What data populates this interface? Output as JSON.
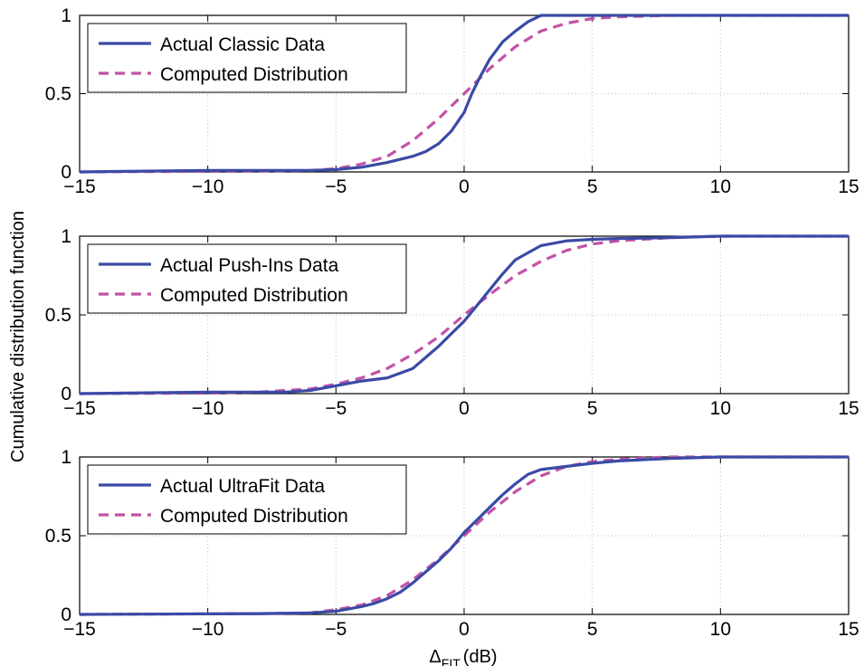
{
  "figure": {
    "ylabel": "Cumulative distribution function",
    "xlabel_symbol": "Δ",
    "xlabel_sub": "FIT",
    "xlabel_unit": "(dB)"
  },
  "colors": {
    "actual": "#3a4aa6",
    "computed": "#c252a6",
    "grid": "#bfbfbf"
  },
  "chart_data": [
    {
      "type": "line",
      "xlim": [
        -15,
        15
      ],
      "ylim": [
        0,
        1
      ],
      "xticks": [
        -15,
        -10,
        -5,
        0,
        5,
        10,
        15
      ],
      "yticks": [
        0,
        0.5,
        1
      ],
      "grid": true,
      "legend": "top-left",
      "series": [
        {
          "name": "Actual Classic Data",
          "style": "solid",
          "x": [
            -15,
            -10,
            -6,
            -5,
            -4,
            -3,
            -2,
            -1.5,
            -1,
            -0.5,
            0,
            0.3,
            0.6,
            1,
            1.5,
            2,
            2.5,
            3,
            4,
            5,
            15
          ],
          "y": [
            0,
            0.01,
            0.01,
            0.015,
            0.03,
            0.06,
            0.1,
            0.13,
            0.18,
            0.26,
            0.38,
            0.5,
            0.6,
            0.72,
            0.83,
            0.9,
            0.96,
            1.0,
            1.0,
            1.0,
            1.0
          ]
        },
        {
          "name": "Computed Distribution",
          "style": "dashed",
          "x": [
            -15,
            -8,
            -6,
            -5,
            -4,
            -3,
            -2,
            -1,
            0,
            1,
            2,
            3,
            4,
            5,
            6,
            8,
            15
          ],
          "y": [
            0,
            0.005,
            0.01,
            0.02,
            0.05,
            0.1,
            0.2,
            0.34,
            0.5,
            0.66,
            0.8,
            0.9,
            0.95,
            0.98,
            0.99,
            1.0,
            1.0
          ]
        }
      ]
    },
    {
      "type": "line",
      "xlim": [
        -15,
        15
      ],
      "ylim": [
        0,
        1
      ],
      "xticks": [
        -15,
        -10,
        -5,
        0,
        5,
        10,
        15
      ],
      "yticks": [
        0,
        0.5,
        1
      ],
      "grid": true,
      "legend": "top-left",
      "series": [
        {
          "name": "Actual Push-Ins Data",
          "style": "solid",
          "x": [
            -15,
            -10,
            -7,
            -6,
            -5,
            -4,
            -3,
            -2,
            -1.5,
            -1,
            -0.5,
            0,
            0.5,
            1,
            1.5,
            2,
            3,
            4,
            5,
            6,
            8,
            10,
            15
          ],
          "y": [
            0,
            0.01,
            0.01,
            0.02,
            0.05,
            0.08,
            0.1,
            0.16,
            0.23,
            0.3,
            0.38,
            0.46,
            0.56,
            0.66,
            0.76,
            0.85,
            0.94,
            0.97,
            0.98,
            0.985,
            0.99,
            1.0,
            1.0
          ]
        },
        {
          "name": "Computed Distribution",
          "style": "dashed",
          "x": [
            -15,
            -10,
            -8,
            -6,
            -5,
            -4,
            -3,
            -2,
            -1,
            0,
            1,
            2,
            3,
            4,
            5,
            6,
            8,
            10,
            15
          ],
          "y": [
            0,
            0.003,
            0.01,
            0.03,
            0.06,
            0.1,
            0.16,
            0.25,
            0.36,
            0.5,
            0.63,
            0.75,
            0.84,
            0.91,
            0.95,
            0.97,
            0.99,
            1.0,
            1.0
          ]
        }
      ]
    },
    {
      "type": "line",
      "xlim": [
        -15,
        15
      ],
      "ylim": [
        0,
        1
      ],
      "xticks": [
        -15,
        -10,
        -5,
        0,
        5,
        10,
        15
      ],
      "yticks": [
        0,
        0.5,
        1
      ],
      "grid": true,
      "legend": "top-left",
      "series": [
        {
          "name": "Actual UltraFit Data",
          "style": "solid",
          "x": [
            -15,
            -8,
            -6,
            -5,
            -4,
            -3.5,
            -3,
            -2.5,
            -2,
            -1.5,
            -1,
            -0.5,
            0,
            0.5,
            1,
            1.5,
            2,
            2.5,
            3,
            4,
            5,
            6,
            8,
            10,
            15
          ],
          "y": [
            0,
            0.005,
            0.01,
            0.02,
            0.05,
            0.07,
            0.1,
            0.14,
            0.2,
            0.27,
            0.34,
            0.42,
            0.52,
            0.6,
            0.68,
            0.76,
            0.83,
            0.89,
            0.92,
            0.94,
            0.96,
            0.975,
            0.99,
            1.0,
            1.0
          ]
        },
        {
          "name": "Computed Distribution",
          "style": "dashed",
          "x": [
            -15,
            -8,
            -6,
            -5,
            -4,
            -3,
            -2,
            -1,
            0,
            1,
            2,
            3,
            4,
            5,
            6,
            8,
            15
          ],
          "y": [
            0,
            0.005,
            0.01,
            0.03,
            0.06,
            0.12,
            0.22,
            0.35,
            0.5,
            0.65,
            0.78,
            0.88,
            0.94,
            0.97,
            0.985,
            1.0,
            1.0
          ]
        }
      ]
    }
  ]
}
